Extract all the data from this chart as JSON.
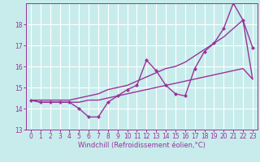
{
  "xlabel": "Windchill (Refroidissement éolien,°C)",
  "background_color": "#c8ecec",
  "line_color": "#993399",
  "grid_color": "#ffffff",
  "x": [
    0,
    1,
    2,
    3,
    4,
    5,
    6,
    7,
    8,
    9,
    10,
    11,
    12,
    13,
    14,
    15,
    16,
    17,
    18,
    19,
    20,
    21,
    22,
    23
  ],
  "line_zigzag": [
    14.4,
    14.3,
    14.3,
    14.3,
    14.3,
    14.0,
    13.6,
    13.6,
    14.3,
    14.6,
    14.9,
    15.1,
    16.3,
    15.8,
    15.1,
    14.7,
    14.6,
    15.9,
    16.7,
    17.1,
    17.8,
    19.0,
    18.2,
    16.9
  ],
  "line_upper": [
    14.4,
    14.4,
    14.4,
    14.4,
    14.4,
    14.5,
    14.6,
    14.7,
    14.9,
    15.0,
    15.1,
    15.3,
    15.5,
    15.7,
    15.9,
    16.0,
    16.2,
    16.5,
    16.8,
    17.1,
    17.4,
    17.8,
    18.2,
    15.4
  ],
  "line_lower": [
    14.4,
    14.3,
    14.3,
    14.3,
    14.3,
    14.3,
    14.4,
    14.4,
    14.5,
    14.6,
    14.7,
    14.8,
    14.9,
    15.0,
    15.1,
    15.2,
    15.3,
    15.4,
    15.5,
    15.6,
    15.7,
    15.8,
    15.9,
    15.4
  ],
  "ylim": [
    13.0,
    19.0
  ],
  "xlim": [
    -0.5,
    23.5
  ],
  "yticks": [
    13,
    14,
    15,
    16,
    17,
    18
  ],
  "xticks": [
    0,
    1,
    2,
    3,
    4,
    5,
    6,
    7,
    8,
    9,
    10,
    11,
    12,
    13,
    14,
    15,
    16,
    17,
    18,
    19,
    20,
    21,
    22,
    23
  ],
  "marker": "D",
  "markersize": 2.5,
  "linewidth": 1.0,
  "tick_fontsize": 5.5,
  "xlabel_fontsize": 6.0
}
